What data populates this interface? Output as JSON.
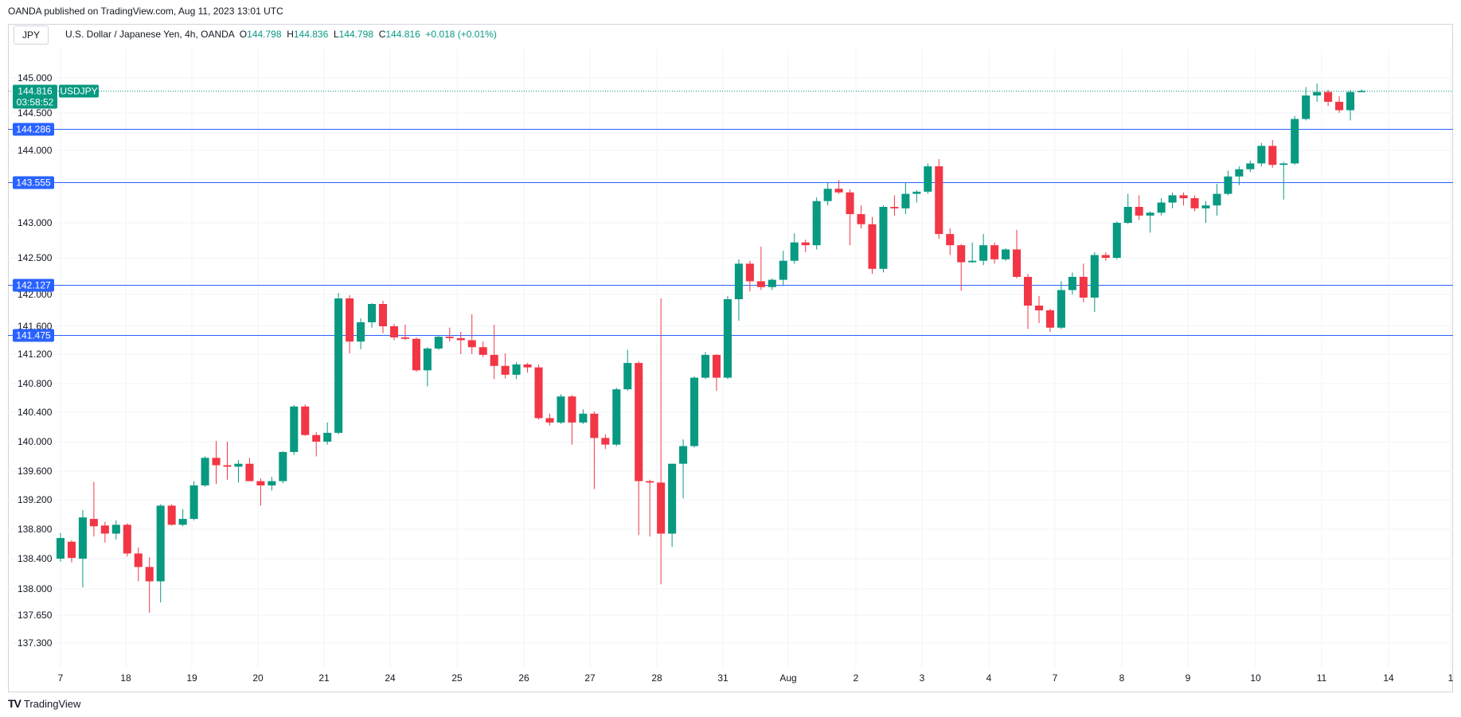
{
  "header": {
    "published": "OANDA published on TradingView.com, Aug 11, 2023 13:01 UTC",
    "symbol_box": "JPY",
    "instrument": "U.S. Dollar / Japanese Yen, 4h, OANDA",
    "o_label": "O",
    "o_value": "144.798",
    "h_label": "H",
    "h_value": "144.836",
    "l_label": "L",
    "l_value": "144.798",
    "c_label": "C",
    "c_value": "144.816",
    "change": "+0.018 (+0.01%)"
  },
  "footer": {
    "logo_mark": "TV",
    "brand": "TradingView"
  },
  "colors": {
    "up": "#089981",
    "down": "#f23645",
    "level_line": "#2962ff",
    "last_price": "#089981"
  },
  "chart_data": {
    "type": "candlestick",
    "title": "U.S. Dollar / Japanese Yen, 4h, OANDA",
    "ylim": [
      137.1,
      145.3
    ],
    "x_tick_labels": [
      "7",
      "18",
      "19",
      "20",
      "21",
      "24",
      "25",
      "26",
      "27",
      "28",
      "31",
      "Aug",
      "2",
      "3",
      "4",
      "7",
      "8",
      "9",
      "10",
      "11",
      "14",
      "1"
    ],
    "y_tick_labels": [
      {
        "label": "145.000",
        "value": 145.0
      },
      {
        "label": "144.500",
        "value": 144.5
      },
      {
        "label": "144.000",
        "value": 144.0
      },
      {
        "label": "143.000",
        "value": 143.0
      },
      {
        "label": "142.500",
        "value": 142.5
      },
      {
        "label": "142.000",
        "value": 142.0
      },
      {
        "label": "141.600",
        "value": 141.6
      },
      {
        "label": "141.200",
        "value": 141.2
      },
      {
        "label": "140.800",
        "value": 140.8
      },
      {
        "label": "140.400",
        "value": 140.4
      },
      {
        "label": "140.000",
        "value": 140.0
      },
      {
        "label": "139.600",
        "value": 139.6
      },
      {
        "label": "139.200",
        "value": 139.2
      },
      {
        "label": "138.800",
        "value": 138.8
      },
      {
        "label": "138.400",
        "value": 138.4
      },
      {
        "label": "138.000",
        "value": 138.0
      },
      {
        "label": "137.650",
        "value": 137.65
      },
      {
        "label": "137.300",
        "value": 137.3
      }
    ],
    "horizontal_levels": [
      {
        "label": "144.286",
        "value": 144.286
      },
      {
        "label": "143.555",
        "value": 143.555
      },
      {
        "label": "142.127",
        "value": 142.127
      },
      {
        "label": "141.475",
        "value": 141.475
      }
    ],
    "last_price": {
      "value": 144.816,
      "label": "144.816",
      "symbol": "USDJPY",
      "countdown": "03:58:52"
    },
    "candles": [
      {
        "o": 138.4,
        "h": 138.75,
        "l": 138.36,
        "c": 138.68
      },
      {
        "o": 138.63,
        "h": 138.65,
        "l": 138.35,
        "c": 138.41
      },
      {
        "o": 138.4,
        "h": 139.06,
        "l": 138.02,
        "c": 138.96
      },
      {
        "o": 138.94,
        "h": 139.45,
        "l": 138.7,
        "c": 138.84
      },
      {
        "o": 138.85,
        "h": 138.9,
        "l": 138.62,
        "c": 138.74
      },
      {
        "o": 138.74,
        "h": 138.92,
        "l": 138.66,
        "c": 138.86
      },
      {
        "o": 138.86,
        "h": 138.88,
        "l": 138.43,
        "c": 138.47
      },
      {
        "o": 138.47,
        "h": 138.55,
        "l": 138.1,
        "c": 138.29
      },
      {
        "o": 138.29,
        "h": 138.42,
        "l": 137.68,
        "c": 138.1
      },
      {
        "o": 138.1,
        "h": 139.14,
        "l": 137.82,
        "c": 139.12
      },
      {
        "o": 139.12,
        "h": 139.14,
        "l": 138.85,
        "c": 138.86
      },
      {
        "o": 138.86,
        "h": 139.07,
        "l": 138.84,
        "c": 138.94
      },
      {
        "o": 138.94,
        "h": 139.46,
        "l": 138.92,
        "c": 139.4
      },
      {
        "o": 139.4,
        "h": 139.8,
        "l": 139.38,
        "c": 139.78
      },
      {
        "o": 139.78,
        "h": 140.01,
        "l": 139.42,
        "c": 139.68
      },
      {
        "o": 139.68,
        "h": 140.0,
        "l": 139.48,
        "c": 139.66
      },
      {
        "o": 139.66,
        "h": 139.75,
        "l": 139.44,
        "c": 139.7
      },
      {
        "o": 139.7,
        "h": 139.78,
        "l": 139.46,
        "c": 139.46
      },
      {
        "o": 139.46,
        "h": 139.5,
        "l": 139.12,
        "c": 139.4
      },
      {
        "o": 139.4,
        "h": 139.52,
        "l": 139.33,
        "c": 139.46
      },
      {
        "o": 139.46,
        "h": 139.87,
        "l": 139.43,
        "c": 139.86
      },
      {
        "o": 139.86,
        "h": 140.5,
        "l": 139.82,
        "c": 140.48
      },
      {
        "o": 140.48,
        "h": 140.51,
        "l": 140.08,
        "c": 140.09
      },
      {
        "o": 140.09,
        "h": 140.13,
        "l": 139.8,
        "c": 140.0
      },
      {
        "o": 140.0,
        "h": 140.26,
        "l": 139.96,
        "c": 140.12
      },
      {
        "o": 140.12,
        "h": 142.02,
        "l": 140.1,
        "c": 141.95
      },
      {
        "o": 141.95,
        "h": 141.99,
        "l": 141.21,
        "c": 141.38
      },
      {
        "o": 141.38,
        "h": 141.7,
        "l": 141.27,
        "c": 141.65
      },
      {
        "o": 141.65,
        "h": 141.89,
        "l": 141.58,
        "c": 141.88
      },
      {
        "o": 141.88,
        "h": 141.92,
        "l": 141.5,
        "c": 141.6
      },
      {
        "o": 141.6,
        "h": 141.63,
        "l": 141.4,
        "c": 141.44
      },
      {
        "o": 141.44,
        "h": 141.62,
        "l": 141.4,
        "c": 141.42
      },
      {
        "o": 141.42,
        "h": 141.44,
        "l": 140.96,
        "c": 140.98
      },
      {
        "o": 140.98,
        "h": 141.3,
        "l": 140.76,
        "c": 141.28
      },
      {
        "o": 141.28,
        "h": 141.46,
        "l": 141.26,
        "c": 141.45
      },
      {
        "o": 141.45,
        "h": 141.58,
        "l": 141.38,
        "c": 141.43
      },
      {
        "o": 141.43,
        "h": 141.52,
        "l": 141.2,
        "c": 141.4
      },
      {
        "o": 141.4,
        "h": 141.75,
        "l": 141.2,
        "c": 141.3
      },
      {
        "o": 141.3,
        "h": 141.38,
        "l": 141.16,
        "c": 141.19
      },
      {
        "o": 141.19,
        "h": 141.62,
        "l": 140.86,
        "c": 141.04
      },
      {
        "o": 141.04,
        "h": 141.21,
        "l": 140.87,
        "c": 140.92
      },
      {
        "o": 140.92,
        "h": 141.09,
        "l": 140.86,
        "c": 141.06
      },
      {
        "o": 141.06,
        "h": 141.08,
        "l": 140.95,
        "c": 141.02
      },
      {
        "o": 141.02,
        "h": 141.06,
        "l": 140.3,
        "c": 140.32
      },
      {
        "o": 140.32,
        "h": 140.38,
        "l": 140.22,
        "c": 140.26
      },
      {
        "o": 140.26,
        "h": 140.65,
        "l": 140.24,
        "c": 140.62
      },
      {
        "o": 140.62,
        "h": 140.64,
        "l": 139.96,
        "c": 140.26
      },
      {
        "o": 140.26,
        "h": 140.44,
        "l": 140.24,
        "c": 140.38
      },
      {
        "o": 140.38,
        "h": 140.41,
        "l": 139.35,
        "c": 140.05
      },
      {
        "o": 140.05,
        "h": 140.1,
        "l": 139.9,
        "c": 139.96
      },
      {
        "o": 139.96,
        "h": 140.74,
        "l": 139.94,
        "c": 140.72
      },
      {
        "o": 140.72,
        "h": 141.26,
        "l": 140.7,
        "c": 141.08
      },
      {
        "o": 141.08,
        "h": 141.1,
        "l": 138.72,
        "c": 139.46
      },
      {
        "o": 139.46,
        "h": 139.48,
        "l": 138.7,
        "c": 139.44
      },
      {
        "o": 139.44,
        "h": 141.95,
        "l": 138.06,
        "c": 138.74
      },
      {
        "o": 138.74,
        "h": 139.7,
        "l": 138.56,
        "c": 139.7
      },
      {
        "o": 139.7,
        "h": 140.03,
        "l": 139.22,
        "c": 139.94
      },
      {
        "o": 139.94,
        "h": 140.9,
        "l": 139.92,
        "c": 140.88
      },
      {
        "o": 140.88,
        "h": 141.23,
        "l": 140.86,
        "c": 141.19
      },
      {
        "o": 141.19,
        "h": 141.2,
        "l": 140.7,
        "c": 140.88
      },
      {
        "o": 140.88,
        "h": 141.98,
        "l": 140.86,
        "c": 141.94
      },
      {
        "o": 141.94,
        "h": 142.48,
        "l": 141.67,
        "c": 142.42
      },
      {
        "o": 142.42,
        "h": 142.46,
        "l": 142.04,
        "c": 142.18
      },
      {
        "o": 142.18,
        "h": 142.66,
        "l": 142.06,
        "c": 142.1
      },
      {
        "o": 142.1,
        "h": 142.22,
        "l": 142.06,
        "c": 142.2
      },
      {
        "o": 142.2,
        "h": 142.6,
        "l": 142.13,
        "c": 142.46
      },
      {
        "o": 142.46,
        "h": 142.85,
        "l": 142.42,
        "c": 142.72
      },
      {
        "o": 142.72,
        "h": 142.76,
        "l": 142.58,
        "c": 142.68
      },
      {
        "o": 142.68,
        "h": 143.35,
        "l": 142.62,
        "c": 143.3
      },
      {
        "o": 143.3,
        "h": 143.56,
        "l": 143.24,
        "c": 143.47
      },
      {
        "o": 143.47,
        "h": 143.59,
        "l": 143.4,
        "c": 143.42
      },
      {
        "o": 143.42,
        "h": 143.46,
        "l": 142.68,
        "c": 143.12
      },
      {
        "o": 143.12,
        "h": 143.24,
        "l": 142.92,
        "c": 142.98
      },
      {
        "o": 142.98,
        "h": 143.08,
        "l": 142.28,
        "c": 142.35
      },
      {
        "o": 142.35,
        "h": 143.24,
        "l": 142.3,
        "c": 143.22
      },
      {
        "o": 143.22,
        "h": 143.38,
        "l": 143.1,
        "c": 143.2
      },
      {
        "o": 143.2,
        "h": 143.56,
        "l": 143.12,
        "c": 143.4
      },
      {
        "o": 143.4,
        "h": 143.45,
        "l": 143.28,
        "c": 143.43
      },
      {
        "o": 143.43,
        "h": 143.82,
        "l": 143.4,
        "c": 143.78
      },
      {
        "o": 143.78,
        "h": 143.88,
        "l": 142.77,
        "c": 142.84
      },
      {
        "o": 142.84,
        "h": 142.92,
        "l": 142.54,
        "c": 142.68
      },
      {
        "o": 142.68,
        "h": 142.7,
        "l": 142.05,
        "c": 142.44
      },
      {
        "o": 142.44,
        "h": 142.72,
        "l": 142.43,
        "c": 142.46
      },
      {
        "o": 142.46,
        "h": 142.84,
        "l": 142.4,
        "c": 142.68
      },
      {
        "o": 142.68,
        "h": 142.72,
        "l": 142.42,
        "c": 142.48
      },
      {
        "o": 142.48,
        "h": 142.64,
        "l": 142.46,
        "c": 142.62
      },
      {
        "o": 142.62,
        "h": 142.9,
        "l": 142.22,
        "c": 142.24
      },
      {
        "o": 142.24,
        "h": 142.28,
        "l": 141.56,
        "c": 141.86
      },
      {
        "o": 141.86,
        "h": 141.98,
        "l": 141.64,
        "c": 141.8
      },
      {
        "o": 141.8,
        "h": 141.82,
        "l": 141.52,
        "c": 141.58
      },
      {
        "o": 141.58,
        "h": 142.18,
        "l": 141.56,
        "c": 142.06
      },
      {
        "o": 142.06,
        "h": 142.3,
        "l": 142.0,
        "c": 142.24
      },
      {
        "o": 142.24,
        "h": 142.42,
        "l": 141.9,
        "c": 141.96
      },
      {
        "o": 141.96,
        "h": 142.58,
        "l": 141.78,
        "c": 142.54
      },
      {
        "o": 142.54,
        "h": 142.58,
        "l": 142.46,
        "c": 142.5
      },
      {
        "o": 142.5,
        "h": 143.02,
        "l": 142.48,
        "c": 143.0
      },
      {
        "o": 143.0,
        "h": 143.4,
        "l": 142.98,
        "c": 143.22
      },
      {
        "o": 143.22,
        "h": 143.38,
        "l": 143.04,
        "c": 143.1
      },
      {
        "o": 143.1,
        "h": 143.16,
        "l": 142.86,
        "c": 143.14
      },
      {
        "o": 143.14,
        "h": 143.34,
        "l": 143.1,
        "c": 143.28
      },
      {
        "o": 143.28,
        "h": 143.42,
        "l": 143.2,
        "c": 143.38
      },
      {
        "o": 143.38,
        "h": 143.42,
        "l": 143.24,
        "c": 143.34
      },
      {
        "o": 143.34,
        "h": 143.38,
        "l": 143.16,
        "c": 143.2
      },
      {
        "o": 143.2,
        "h": 143.3,
        "l": 143.0,
        "c": 143.24
      },
      {
        "o": 143.24,
        "h": 143.54,
        "l": 143.1,
        "c": 143.4
      },
      {
        "o": 143.4,
        "h": 143.72,
        "l": 143.38,
        "c": 143.64
      },
      {
        "o": 143.64,
        "h": 143.78,
        "l": 143.52,
        "c": 143.74
      },
      {
        "o": 143.74,
        "h": 143.86,
        "l": 143.7,
        "c": 143.82
      },
      {
        "o": 143.82,
        "h": 144.1,
        "l": 143.78,
        "c": 144.06
      },
      {
        "o": 144.06,
        "h": 144.14,
        "l": 143.76,
        "c": 143.8
      },
      {
        "o": 143.8,
        "h": 143.84,
        "l": 143.32,
        "c": 143.82
      },
      {
        "o": 143.82,
        "h": 144.46,
        "l": 143.8,
        "c": 144.42
      },
      {
        "o": 144.42,
        "h": 144.87,
        "l": 144.4,
        "c": 144.75
      },
      {
        "o": 144.75,
        "h": 144.92,
        "l": 144.66,
        "c": 144.8
      },
      {
        "o": 144.8,
        "h": 144.83,
        "l": 144.6,
        "c": 144.66
      },
      {
        "o": 144.66,
        "h": 144.74,
        "l": 144.5,
        "c": 144.54
      },
      {
        "o": 144.54,
        "h": 144.83,
        "l": 144.4,
        "c": 144.8
      },
      {
        "o": 144.798,
        "h": 144.836,
        "l": 144.798,
        "c": 144.816
      }
    ]
  }
}
